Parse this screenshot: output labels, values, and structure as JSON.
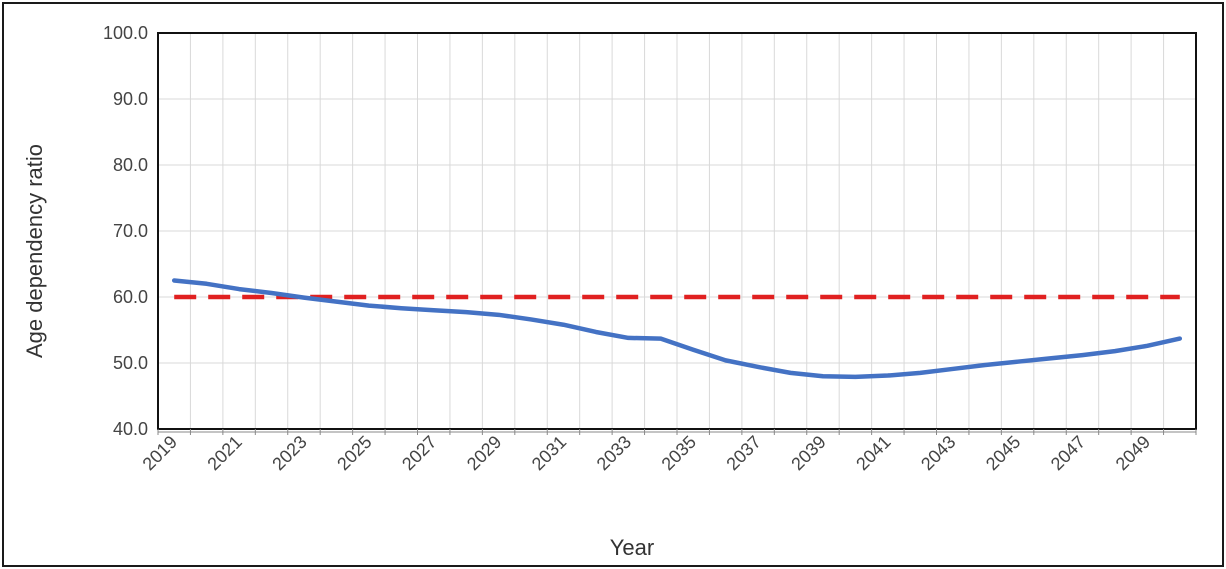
{
  "chart_data": {
    "type": "line",
    "xlabel": "Year",
    "ylabel": "Age dependency ratio",
    "xlim": [
      2019,
      2050
    ],
    "ylim": [
      40,
      100
    ],
    "y_ticks": [
      "100.0",
      "90.0",
      "80.0",
      "70.0",
      "60.0",
      "50.0",
      "40.0"
    ],
    "x_tick_labels": [
      "2019",
      "2021",
      "2023",
      "2025",
      "2027",
      "2029",
      "2031",
      "2033",
      "2035",
      "2037",
      "2039",
      "2041",
      "2043",
      "2045",
      "2047",
      "2049"
    ],
    "grid": true,
    "legend": "none",
    "x": [
      2019,
      2020,
      2021,
      2022,
      2023,
      2024,
      2025,
      2026,
      2027,
      2028,
      2029,
      2030,
      2031,
      2032,
      2033,
      2034,
      2035,
      2036,
      2037,
      2038,
      2039,
      2040,
      2041,
      2042,
      2043,
      2044,
      2045,
      2046,
      2047,
      2048,
      2049,
      2050
    ],
    "series": [
      {
        "values": [
          62.5,
          62.0,
          61.2,
          60.6,
          59.9,
          59.3,
          58.7,
          58.3,
          58.0,
          57.7,
          57.3,
          56.6,
          55.8,
          54.7,
          53.8,
          53.7,
          52.0,
          50.4,
          49.4,
          48.5,
          48.0,
          47.9,
          48.1,
          48.5,
          49.1,
          49.7,
          50.2,
          50.7,
          51.2,
          51.8,
          52.6,
          53.7
        ],
        "color": "#4472c4",
        "style": "solid"
      },
      {
        "values": [
          60,
          60,
          60,
          60,
          60,
          60,
          60,
          60,
          60,
          60,
          60,
          60,
          60,
          60,
          60,
          60,
          60,
          60,
          60,
          60,
          60,
          60,
          60,
          60,
          60,
          60,
          60,
          60,
          60,
          60,
          60,
          60
        ],
        "color": "#e02020",
        "style": "dashed"
      }
    ]
  }
}
